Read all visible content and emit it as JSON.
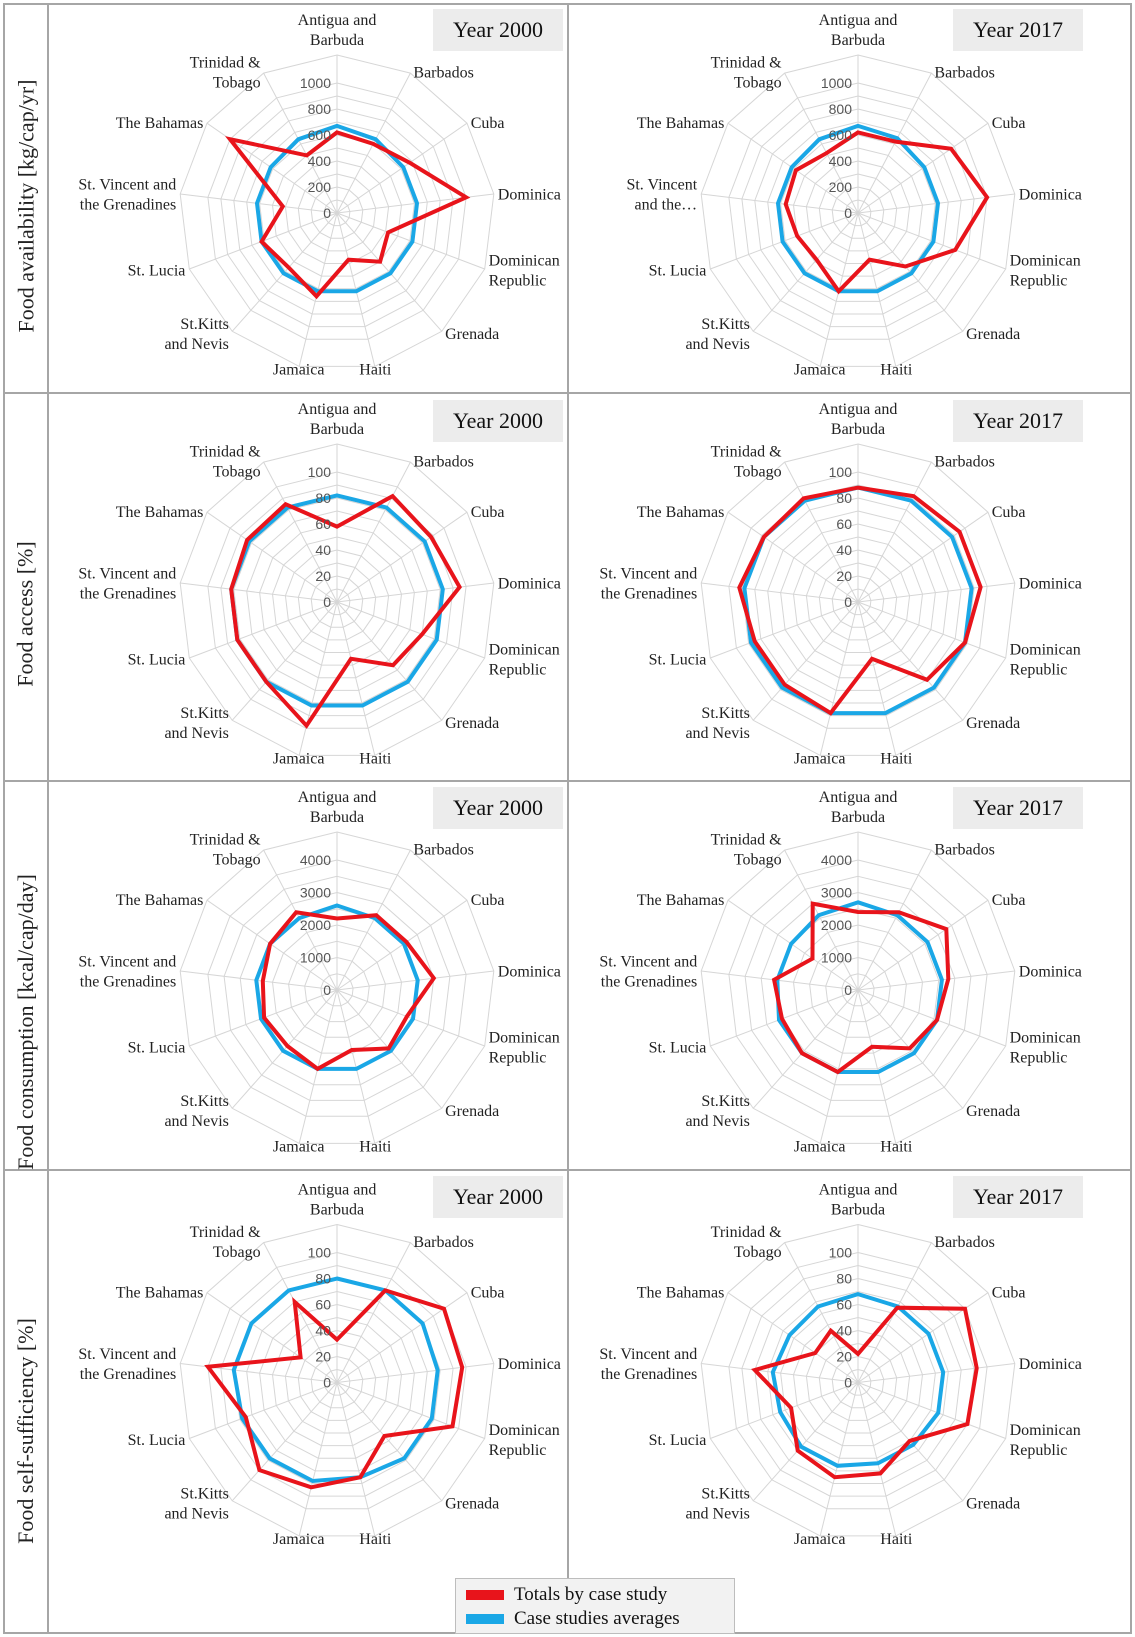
{
  "figure": {
    "rows": [
      {
        "ylabel": "Food availability [kg/cap/yr]"
      },
      {
        "ylabel": "Food access [%]"
      },
      {
        "ylabel": "Food consumption [kcal/cap/day]"
      },
      {
        "ylabel": "Food self-sufficiency [%]"
      }
    ]
  },
  "legend": {
    "items": [
      {
        "label": "Totals by case study",
        "color": "#e8141b"
      },
      {
        "label": "Case studies averages",
        "color": "#1aa7e6"
      }
    ]
  },
  "colors": {
    "totals": "#e8141b",
    "averages": "#1aa7e6",
    "grid": "#d6d6d6",
    "frame": "#a6a6a6",
    "year_box": "#ececec"
  },
  "chart_data": [
    {
      "type": "radar",
      "indicator": "Food availability [kg/cap/yr]",
      "title": "Year 2000",
      "categories": [
        "Antigua and Barbuda",
        "Barbados",
        "Cuba",
        "Dominica",
        "Dominican Republic",
        "Grenada",
        "Haiti",
        "Jamaica",
        "St.Kitts and Nevis",
        "St. Lucia",
        "St. Vincent and the Grenadines",
        "The Bahamas",
        "Trinidad & Tobago"
      ],
      "yticks": [
        "0",
        "200",
        "400",
        "600",
        "800",
        "1000"
      ],
      "ylim": [
        0,
        1000
      ],
      "series": [
        {
          "name": "Totals by case study",
          "values": [
            620,
            600,
            680,
            1000,
            420,
            500,
            370,
            660,
            560,
            620,
            420,
            1000,
            500
          ]
        },
        {
          "name": "Case studies averages",
          "values": [
            670,
            640,
            620,
            620,
            620,
            620,
            620,
            620,
            620,
            620,
            620,
            620,
            640
          ]
        }
      ]
    },
    {
      "type": "radar",
      "indicator": "Food availability [kg/cap/yr]",
      "title": "Year 2017",
      "categories": [
        "Antigua and Barbuda",
        "Barbados",
        "Cuba",
        "Dominica",
        "Dominican Republic",
        "Grenada",
        "Haiti",
        "Jamaica",
        "St.Kitts and Nevis",
        "St. Lucia",
        "St. Vincent and the…",
        "The Bahamas",
        "Trinidad & Tobago"
      ],
      "yticks": [
        "0",
        "200",
        "400",
        "600",
        "800",
        "1000"
      ],
      "ylim": [
        0,
        1000
      ],
      "series": [
        {
          "name": "Totals by case study",
          "values": [
            620,
            620,
            870,
            1000,
            800,
            550,
            370,
            620,
            480,
            500,
            560,
            580,
            520
          ]
        },
        {
          "name": "Case studies averages",
          "values": [
            670,
            650,
            620,
            620,
            620,
            620,
            620,
            620,
            620,
            620,
            620,
            620,
            640
          ]
        }
      ]
    },
    {
      "type": "radar",
      "indicator": "Food access [%]",
      "title": "Year 2000",
      "categories": [
        "Antigua and Barbuda",
        "Barbados",
        "Cuba",
        "Dominica",
        "Dominican Republic",
        "Grenada",
        "Haiti",
        "Jamaica",
        "St.Kitts and Nevis",
        "St. Lucia",
        "St. Vincent and the Grenadines",
        "The Bahamas",
        "Trinidad & Tobago"
      ],
      "yticks": [
        "0",
        "20",
        "40",
        "60",
        "80",
        "100"
      ],
      "ylim": [
        0,
        100
      ],
      "series": [
        {
          "name": "Totals by case study",
          "values": [
            58,
            92,
            88,
            95,
            70,
            65,
            45,
            98,
            82,
            82,
            82,
            84,
            85
          ]
        },
        {
          "name": "Case studies averages",
          "values": [
            82,
            82,
            82,
            82,
            82,
            82,
            82,
            82,
            82,
            82,
            82,
            82,
            82
          ]
        }
      ]
    },
    {
      "type": "radar",
      "indicator": "Food access [%]",
      "title": "Year 2017",
      "categories": [
        "Antigua and Barbuda",
        "Barbados",
        "Cuba",
        "Dominica",
        "Dominican Republic",
        "Grenada",
        "Haiti",
        "Jamaica",
        "St.Kitts and Nevis",
        "St. Lucia",
        "St. Vincent and the Grenadines",
        "The Bahamas",
        "Trinidad & Tobago"
      ],
      "yticks": [
        "0",
        "20",
        "40",
        "60",
        "80",
        "100"
      ],
      "ylim": [
        0,
        100
      ],
      "series": [
        {
          "name": "Totals by case study",
          "values": [
            88,
            92,
            95,
            95,
            88,
            80,
            45,
            88,
            85,
            85,
            92,
            88,
            90
          ]
        },
        {
          "name": "Case studies averages",
          "values": [
            88,
            88,
            88,
            88,
            88,
            88,
            88,
            88,
            88,
            88,
            88,
            88,
            88
          ]
        }
      ]
    },
    {
      "type": "radar",
      "indicator": "Food consumption [kcal/cap/day]",
      "title": "Year 2000",
      "categories": [
        "Antigua and Barbuda",
        "Barbados",
        "Cuba",
        "Dominica",
        "Dominican Republic",
        "Grenada",
        "Haiti",
        "Jamaica",
        "St.Kitts and Nevis",
        "St. Lucia",
        "St. Vincent and the Grenadines",
        "The Bahamas",
        "Trinidad & Tobago"
      ],
      "yticks": [
        "0",
        "1000",
        "2000",
        "3000",
        "4000"
      ],
      "ylim": [
        0,
        4000
      ],
      "series": [
        {
          "name": "Totals by case study",
          "values": [
            2200,
            2600,
            2600,
            3000,
            2300,
            2400,
            1900,
            2500,
            2300,
            2400,
            2300,
            2500,
            2700
          ]
        },
        {
          "name": "Case studies averages",
          "values": [
            2600,
            2500,
            2500,
            2500,
            2500,
            2500,
            2500,
            2500,
            2500,
            2500,
            2500,
            2500,
            2500
          ]
        }
      ]
    },
    {
      "type": "radar",
      "indicator": "Food consumption [kcal/cap/day]",
      "title": "Year 2017",
      "categories": [
        "Antigua and Barbuda",
        "Barbados",
        "Cuba",
        "Dominica",
        "Dominican Republic",
        "Grenada",
        "Haiti",
        "Jamaica",
        "St.Kitts and Nevis",
        "St. Lucia",
        "St. Vincent and the Grenadines",
        "The Bahamas",
        "Trinidad & Tobago"
      ],
      "yticks": [
        "0",
        "1000",
        "2000",
        "3000",
        "4000"
      ],
      "ylim": [
        0,
        4000
      ],
      "series": [
        {
          "name": "Totals by case study",
          "values": [
            2400,
            2700,
            3300,
            2800,
            2600,
            2400,
            1800,
            2600,
            2600,
            2500,
            2600,
            1700,
            3000
          ]
        },
        {
          "name": "Case studies averages",
          "values": [
            2700,
            2600,
            2600,
            2600,
            2600,
            2600,
            2600,
            2600,
            2600,
            2600,
            2500,
            2500,
            2600
          ]
        }
      ]
    },
    {
      "type": "radar",
      "indicator": "Food self-sufficiency [%]",
      "title": "Year 2000",
      "categories": [
        "Antigua and Barbuda",
        "Barbados",
        "Cuba",
        "Dominica",
        "Dominican Republic",
        "Grenada",
        "Haiti",
        "Jamaica",
        "St.Kitts and Nevis",
        "St. Lucia",
        "St. Vincent and the Grenadines",
        "The Bahamas",
        "Trinidad & Tobago"
      ],
      "yticks": [
        "0",
        "20",
        "40",
        "60",
        "80",
        "100"
      ],
      "ylim": [
        0,
        100
      ],
      "series": [
        {
          "name": "Totals by case study",
          "values": [
            33,
            80,
            100,
            97,
            95,
            55,
            75,
            83,
            90,
            75,
            100,
            34,
            70
          ]
        },
        {
          "name": "Case studies averages",
          "values": [
            80,
            80,
            80,
            78,
            78,
            78,
            75,
            78,
            78,
            78,
            80,
            80,
            80
          ]
        }
      ]
    },
    {
      "type": "radar",
      "indicator": "Food self-sufficiency [%]",
      "title": "Year 2017",
      "categories": [
        "Antigua and Barbuda",
        "Barbados",
        "Cuba",
        "Dominica",
        "Dominican Republic",
        "Grenada",
        "Haiti",
        "Jamaica",
        "St.Kitts and Nevis",
        "St. Lucia",
        "St. Vincent and the Grenadines",
        "The Bahamas",
        "Trinidad & Tobago"
      ],
      "yticks": [
        "0",
        "20",
        "40",
        "60",
        "80",
        "100"
      ],
      "ylim": [
        0,
        100
      ],
      "series": [
        {
          "name": "Totals by case study",
          "values": [
            22,
            65,
            100,
            92,
            90,
            60,
            72,
            75,
            70,
            55,
            80,
            40,
            45
          ]
        },
        {
          "name": "Case studies averages",
          "values": [
            68,
            66,
            66,
            66,
            66,
            64,
            64,
            66,
            66,
            64,
            66,
            64,
            66
          ]
        }
      ]
    }
  ]
}
